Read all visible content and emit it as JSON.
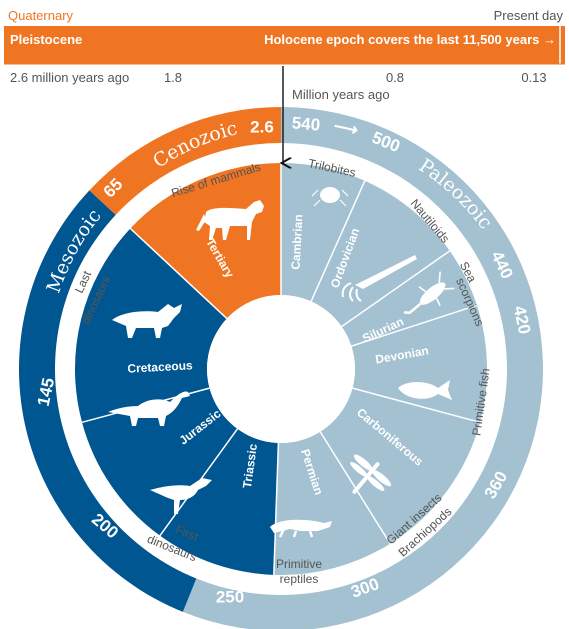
{
  "timeline": {
    "quaternary_label": "Quaternary",
    "present_day_label": "Present day",
    "pleistocene_label": "Pleistocene",
    "holocene_label": "Holocene epoch covers the last 11,500 years →",
    "tick_2_6": "2.6 million years ago",
    "tick_1_8": "1.8",
    "tick_0_8": "0.8",
    "tick_0_13": "0.13",
    "axis_unit": "Million years ago"
  },
  "eras": {
    "cenozoic": "Cenozoic",
    "paleozoic": "Paleozoic",
    "mesozoic": "Mesozoic"
  },
  "boundary_numbers": {
    "n2_6": "2.6",
    "n540": "540",
    "arrow": "⟶",
    "n500": "500",
    "n440": "440",
    "n420": "420",
    "n360": "360",
    "n300": "300",
    "n250": "250",
    "n200": "200",
    "n145": "145",
    "n65": "65"
  },
  "periods": {
    "tertiary": "Tertiary",
    "cambrian": "Cambrian",
    "ordovician": "Ordovician",
    "silurian": "Silurian",
    "devonian": "Devonian",
    "carboniferous": "Carboniferous",
    "permian": "Permian",
    "triassic": "Triassic",
    "jurassic": "Jurassic",
    "cretaceous": "Cretaceous"
  },
  "annotations": {
    "rise_of_mammals": "Rise of mammals",
    "trilobites": "Trilobites",
    "nautiloids": "Nautiloids",
    "sea_scorpions_1": "Sea",
    "sea_scorpions_2": "scorpions",
    "primitive_fish": "Primitive fish",
    "giant_insects": "Giant insects",
    "brachiopods": "Brachiopods",
    "primitive_reptiles_1": "Primitive",
    "primitive_reptiles_2": "reptiles",
    "first_dinosaurs_1": "First",
    "first_dinosaurs_2": "dinosaurs",
    "last_dinosaurs_1": "Last",
    "last_dinosaurs_2": "dinosaurs"
  },
  "colors": {
    "orange": "#f07522",
    "navy": "#005690",
    "light_blue": "#a3c1d1",
    "text_grey": "#555555"
  }
}
